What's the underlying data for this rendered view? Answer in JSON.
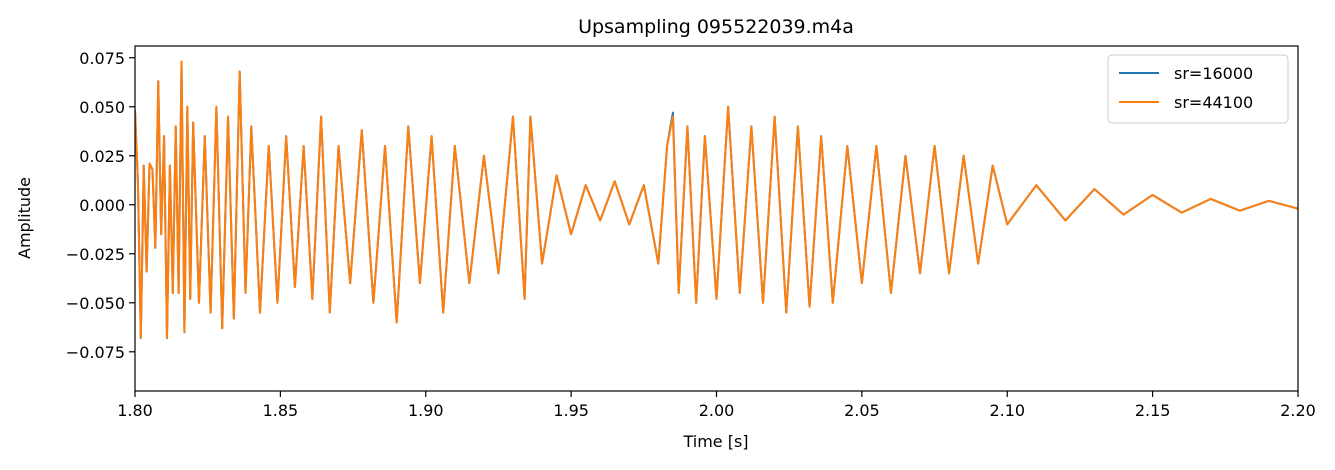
{
  "chart_data": {
    "type": "line",
    "title": "Upsampling 095522039.m4a",
    "xlabel": "Time [s]",
    "ylabel": "Amplitude",
    "xlim": [
      1.8,
      2.2
    ],
    "ylim": [
      -0.095,
      0.081
    ],
    "xticks": [
      1.8,
      1.85,
      1.9,
      1.95,
      2.0,
      2.05,
      2.1,
      2.15,
      2.2
    ],
    "xtick_labels": [
      "1.80",
      "1.85",
      "1.90",
      "1.95",
      "2.00",
      "2.05",
      "2.10",
      "2.15",
      "2.20"
    ],
    "yticks": [
      0.075,
      0.05,
      0.025,
      0.0,
      -0.025,
      -0.05,
      -0.075
    ],
    "ytick_labels": [
      "0.075",
      "0.050",
      "0.025",
      "0.000",
      "−0.025",
      "−0.050",
      "−0.075"
    ],
    "grid": false,
    "legend_position": "top-right",
    "series": [
      {
        "name": "sr=16000",
        "color": "#1f77b4",
        "x": [
          1.8,
          1.801,
          1.802,
          1.803,
          1.804,
          1.805,
          1.806,
          1.807,
          1.808,
          1.809,
          1.81,
          1.811,
          1.812,
          1.813,
          1.814,
          1.815,
          1.816,
          1.817,
          1.818,
          1.819,
          1.82,
          1.822,
          1.824,
          1.826,
          1.828,
          1.83,
          1.832,
          1.834,
          1.836,
          1.838,
          1.84,
          1.843,
          1.846,
          1.849,
          1.852,
          1.855,
          1.858,
          1.861,
          1.864,
          1.867,
          1.87,
          1.874,
          1.878,
          1.882,
          1.886,
          1.89,
          1.894,
          1.898,
          1.902,
          1.906,
          1.91,
          1.915,
          1.92,
          1.925,
          1.93,
          1.934,
          1.936,
          1.94,
          1.945,
          1.95,
          1.955,
          1.96,
          1.965,
          1.97,
          1.975,
          1.98,
          1.983,
          1.985,
          1.987,
          1.99,
          1.993,
          1.996,
          2.0,
          2.004,
          2.008,
          2.012,
          2.016,
          2.02,
          2.024,
          2.028,
          2.032,
          2.036,
          2.04,
          2.045,
          2.05,
          2.055,
          2.06,
          2.065,
          2.07,
          2.075,
          2.08,
          2.085,
          2.09,
          2.095,
          2.1,
          2.11,
          2.12,
          2.13,
          2.14,
          2.15,
          2.16,
          2.17,
          2.18,
          2.19,
          2.2
        ],
        "y": [
          0.048,
          0.012,
          -0.068,
          0.02,
          -0.034,
          0.021,
          0.018,
          -0.022,
          0.063,
          -0.015,
          0.035,
          -0.068,
          0.02,
          -0.045,
          0.04,
          -0.045,
          0.073,
          -0.065,
          0.05,
          -0.048,
          0.042,
          -0.05,
          0.035,
          -0.055,
          0.05,
          -0.063,
          0.045,
          -0.058,
          0.068,
          -0.045,
          0.04,
          -0.055,
          0.03,
          -0.05,
          0.035,
          -0.042,
          0.03,
          -0.048,
          0.045,
          -0.055,
          0.03,
          -0.04,
          0.038,
          -0.05,
          0.03,
          -0.06,
          0.04,
          -0.04,
          0.035,
          -0.055,
          0.03,
          -0.04,
          0.025,
          -0.035,
          0.045,
          -0.048,
          0.045,
          -0.03,
          0.015,
          -0.015,
          0.01,
          -0.008,
          0.012,
          -0.01,
          0.01,
          -0.03,
          0.03,
          0.047,
          -0.045,
          0.04,
          -0.05,
          0.035,
          -0.048,
          0.05,
          -0.045,
          0.04,
          -0.05,
          0.045,
          -0.055,
          0.04,
          -0.052,
          0.035,
          -0.05,
          0.03,
          -0.04,
          0.03,
          -0.045,
          0.025,
          -0.035,
          0.03,
          -0.035,
          0.025,
          -0.03,
          0.02,
          -0.01,
          0.01,
          -0.008,
          0.008,
          -0.005,
          0.005,
          -0.004,
          0.003,
          -0.003,
          0.002,
          -0.002
        ]
      },
      {
        "name": "sr=44100",
        "color": "#ff7f0e",
        "x": [
          1.8,
          1.801,
          1.802,
          1.803,
          1.804,
          1.805,
          1.806,
          1.807,
          1.808,
          1.809,
          1.81,
          1.811,
          1.812,
          1.813,
          1.814,
          1.815,
          1.816,
          1.817,
          1.818,
          1.819,
          1.82,
          1.822,
          1.824,
          1.826,
          1.828,
          1.83,
          1.832,
          1.834,
          1.836,
          1.838,
          1.84,
          1.843,
          1.846,
          1.849,
          1.852,
          1.855,
          1.858,
          1.861,
          1.864,
          1.867,
          1.87,
          1.874,
          1.878,
          1.882,
          1.886,
          1.89,
          1.894,
          1.898,
          1.902,
          1.906,
          1.91,
          1.915,
          1.92,
          1.925,
          1.93,
          1.934,
          1.936,
          1.94,
          1.945,
          1.95,
          1.955,
          1.96,
          1.965,
          1.97,
          1.975,
          1.98,
          1.983,
          1.985,
          1.987,
          1.99,
          1.993,
          1.996,
          2.0,
          2.004,
          2.008,
          2.012,
          2.016,
          2.02,
          2.024,
          2.028,
          2.032,
          2.036,
          2.04,
          2.045,
          2.05,
          2.055,
          2.06,
          2.065,
          2.07,
          2.075,
          2.08,
          2.085,
          2.09,
          2.095,
          2.1,
          2.11,
          2.12,
          2.13,
          2.14,
          2.15,
          2.16,
          2.17,
          2.18,
          2.19,
          2.2
        ],
        "y": [
          0.048,
          0.012,
          -0.068,
          0.02,
          -0.034,
          0.021,
          0.018,
          -0.022,
          0.063,
          -0.015,
          0.035,
          -0.068,
          0.02,
          -0.045,
          0.04,
          -0.045,
          0.073,
          -0.065,
          0.05,
          -0.048,
          0.042,
          -0.05,
          0.035,
          -0.055,
          0.05,
          -0.063,
          0.045,
          -0.058,
          0.068,
          -0.045,
          0.04,
          -0.055,
          0.03,
          -0.05,
          0.035,
          -0.042,
          0.03,
          -0.048,
          0.045,
          -0.055,
          0.03,
          -0.04,
          0.038,
          -0.05,
          0.03,
          -0.06,
          0.04,
          -0.04,
          0.035,
          -0.055,
          0.03,
          -0.04,
          0.025,
          -0.035,
          0.045,
          -0.048,
          0.045,
          -0.03,
          0.015,
          -0.015,
          0.01,
          -0.008,
          0.012,
          -0.01,
          0.01,
          -0.03,
          0.03,
          0.045,
          -0.045,
          0.04,
          -0.05,
          0.035,
          -0.048,
          0.05,
          -0.045,
          0.04,
          -0.05,
          0.045,
          -0.055,
          0.04,
          -0.052,
          0.035,
          -0.05,
          0.03,
          -0.04,
          0.03,
          -0.045,
          0.025,
          -0.035,
          0.03,
          -0.035,
          0.025,
          -0.03,
          0.02,
          -0.01,
          0.01,
          -0.008,
          0.008,
          -0.005,
          0.005,
          -0.004,
          0.003,
          -0.003,
          0.002,
          -0.002
        ]
      }
    ]
  }
}
